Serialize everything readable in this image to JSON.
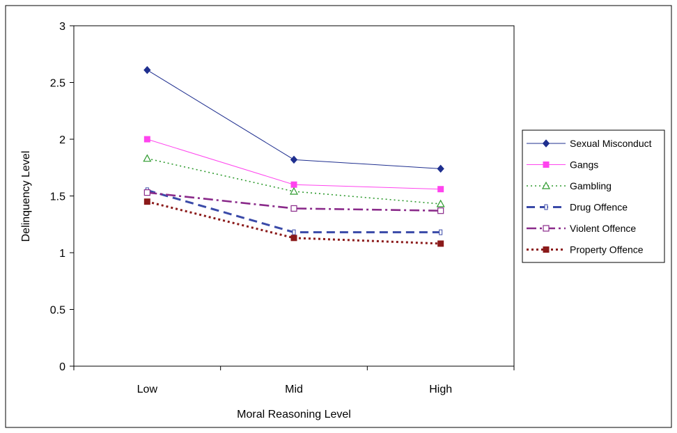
{
  "chart_data": {
    "type": "line",
    "title": "",
    "xlabel": "Moral Reasoning Level",
    "ylabel": "Delinquency  Level",
    "categories": [
      "Low",
      "Mid",
      "High"
    ],
    "ylim": [
      0,
      3
    ],
    "yticks": [
      0,
      0.5,
      1,
      1.5,
      2,
      2.5,
      3
    ],
    "ytick_labels": [
      "0",
      "0.5",
      "1",
      "1.5",
      "2",
      "2.5",
      "3"
    ],
    "grid": false,
    "legend_position": "right",
    "series": [
      {
        "name": "Sexual Misconduct",
        "values": [
          2.61,
          1.82,
          1.74
        ],
        "color": "#1f2f8f",
        "dash": "solid",
        "marker": "diamond-filled"
      },
      {
        "name": "Gangs",
        "values": [
          2.0,
          1.6,
          1.56
        ],
        "color": "#ff44ee",
        "dash": "solid",
        "marker": "square-filled"
      },
      {
        "name": "Gambling",
        "values": [
          1.83,
          1.54,
          1.43
        ],
        "color": "#2e9a2e",
        "dash": "dotted",
        "marker": "triangle-open"
      },
      {
        "name": "Drug Offence",
        "values": [
          1.55,
          1.18,
          1.18
        ],
        "color": "#3a4aa8",
        "dash": "long-dash",
        "marker": "rect-open"
      },
      {
        "name": "Violent Offence",
        "values": [
          1.53,
          1.39,
          1.37
        ],
        "color": "#8a2a8a",
        "dash": "dash-dot",
        "marker": "square-open"
      },
      {
        "name": "Property Offence",
        "values": [
          1.45,
          1.13,
          1.08
        ],
        "color": "#8b1a1a",
        "dash": "dotted-heavy",
        "marker": "square-filled"
      }
    ]
  }
}
